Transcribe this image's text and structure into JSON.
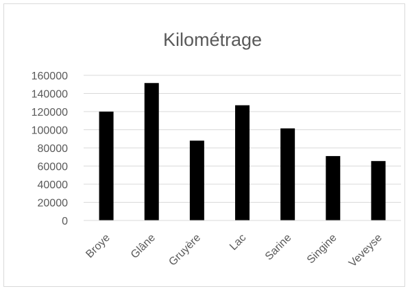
{
  "chart_data": {
    "type": "bar",
    "title": "Kilométrage",
    "categories": [
      "Broye",
      "Glâne",
      "Gruyère",
      "Lac",
      "Sarine",
      "Singine",
      "Veveyse"
    ],
    "values": [
      120000,
      151500,
      88000,
      127000,
      101500,
      71000,
      65500
    ],
    "ylim": [
      0,
      160000
    ],
    "yticks": [
      "0",
      "20000",
      "40000",
      "60000",
      "80000",
      "100000",
      "120000",
      "140000",
      "160000"
    ],
    "xlabel": "",
    "ylabel": "",
    "grid": true,
    "legend": "none",
    "bar_color": "#000000",
    "grid_color": "#d9d9d9"
  }
}
